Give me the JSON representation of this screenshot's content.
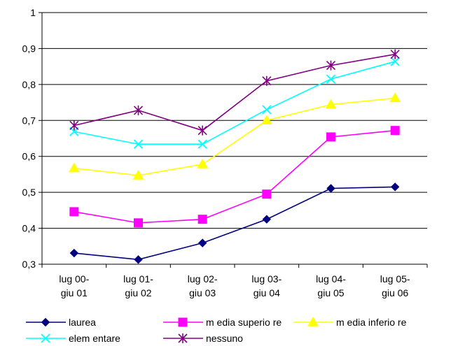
{
  "chart_data": {
    "type": "line",
    "title": "",
    "xlabel": "",
    "ylabel": "",
    "categories": [
      [
        "lug 00-",
        "giu 01"
      ],
      [
        "lug 01-",
        "giu 02"
      ],
      [
        "lug 02-",
        "giu 03"
      ],
      [
        "lug 03-",
        "giu 04"
      ],
      [
        "lug 04-",
        "giu 05"
      ],
      [
        "lug 05-",
        "giu 06"
      ]
    ],
    "ylim": [
      0.3,
      1.0
    ],
    "yticks": [
      0.3,
      0.4,
      0.5,
      0.6,
      0.7,
      0.8,
      0.9,
      1.0
    ],
    "ytick_labels": [
      "0,3",
      "0,4",
      "0,5",
      "0,6",
      "0,7",
      "0,8",
      "0,9",
      "1"
    ],
    "grid": true,
    "legend_position": "bottom",
    "series": [
      {
        "name": "laurea",
        "values": [
          0.331,
          0.313,
          0.359,
          0.425,
          0.511,
          0.515
        ],
        "color": "#000080",
        "marker": "diamond"
      },
      {
        "name": "m edia superio re",
        "values": [
          0.446,
          0.415,
          0.425,
          0.495,
          0.654,
          0.672
        ],
        "color": "#FF00FF",
        "marker": "square"
      },
      {
        "name": "m edia inferio re",
        "values": [
          0.567,
          0.547,
          0.578,
          0.7,
          0.744,
          0.762
        ],
        "color": "#FFFF00",
        "marker": "triangle"
      },
      {
        "name": "elem entare",
        "values": [
          0.669,
          0.634,
          0.634,
          0.73,
          0.815,
          0.864
        ],
        "color": "#00FFFF",
        "marker": "x"
      },
      {
        "name": "nessuno",
        "values": [
          0.686,
          0.728,
          0.672,
          0.81,
          0.853,
          0.884
        ],
        "color": "#800080",
        "marker": "star"
      }
    ]
  }
}
